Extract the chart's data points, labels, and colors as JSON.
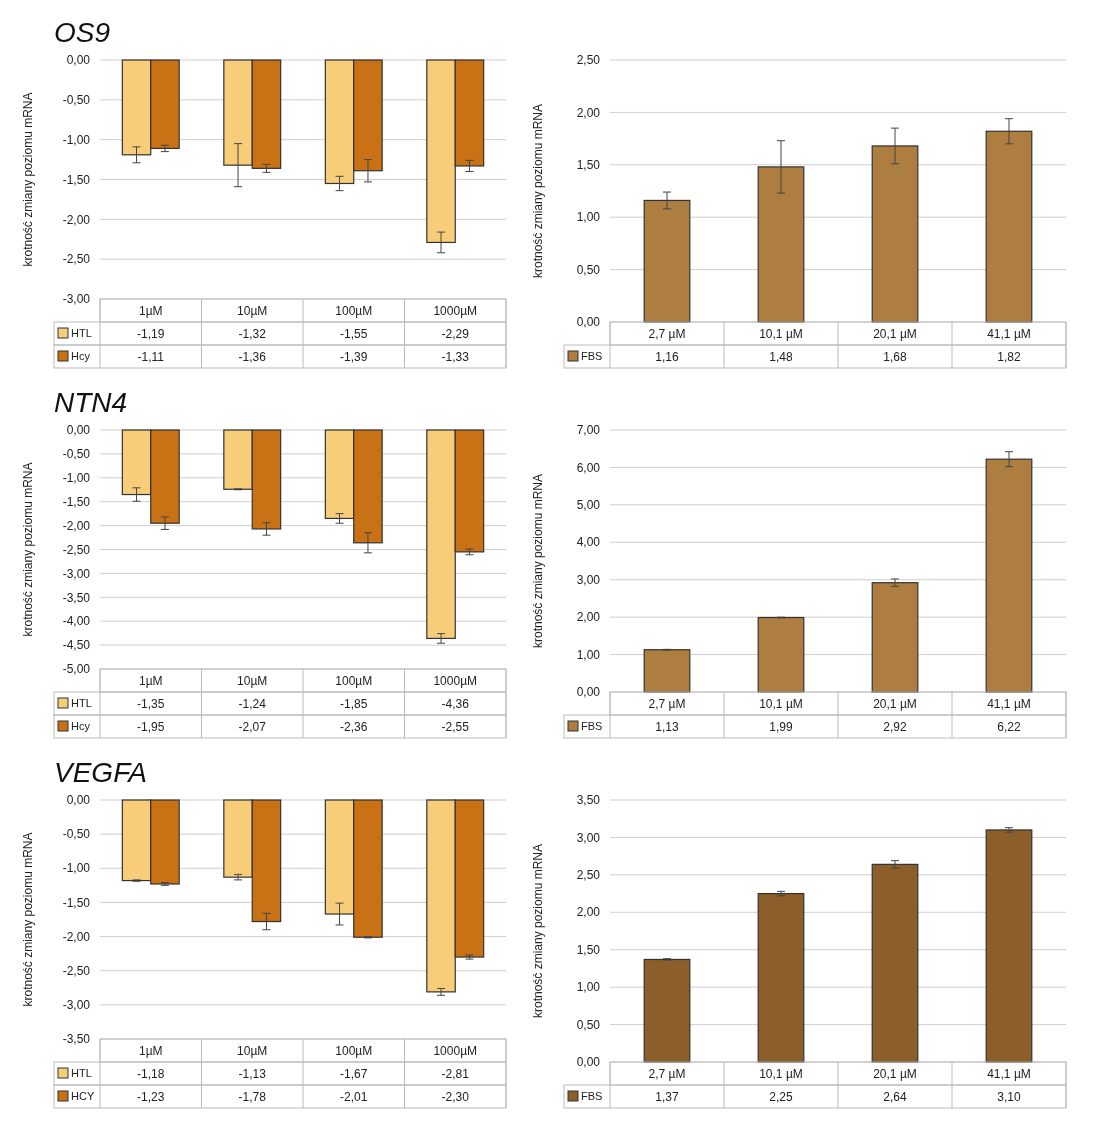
{
  "chart_data": [
    {
      "type": "bar",
      "title": "OS9",
      "ylabel": "krotność zmiany poziomu mRNA",
      "categories": [
        "1µM",
        "10µM",
        "100µM",
        "1000µM"
      ],
      "series": [
        {
          "name": "HTL",
          "color": "#f7cd7a",
          "values": [
            -1.19,
            -1.32,
            -1.55,
            -2.29
          ],
          "errors": [
            0.1,
            0.27,
            0.09,
            0.13
          ],
          "value_labels": [
            "-1,19",
            "-1,32",
            "-1,55",
            "-2,29"
          ]
        },
        {
          "name": "Hcy",
          "color": "#c87215",
          "values": [
            -1.11,
            -1.36,
            -1.39,
            -1.33
          ],
          "errors": [
            0.04,
            0.05,
            0.14,
            0.07
          ],
          "value_labels": [
            "-1,11",
            "-1,36",
            "-1,39",
            "-1,33"
          ]
        }
      ],
      "ylim": [
        -3,
        0
      ],
      "yticks": [
        {
          "value": -3,
          "label": "-3,00"
        },
        {
          "value": -2.5,
          "label": "-2,50"
        },
        {
          "value": -2,
          "label": "-2,00"
        },
        {
          "value": -1.5,
          "label": "-1,50"
        },
        {
          "value": -1,
          "label": "-1,00"
        },
        {
          "value": -0.5,
          "label": "-0,50"
        },
        {
          "value": 0,
          "label": "0,00"
        }
      ],
      "grid": "y",
      "legend": "bottom"
    },
    {
      "type": "bar",
      "ylabel": "krotność zmiany poziomu mRNA",
      "categories": [
        "2,7 µM",
        "10,1 µM",
        "20,1 µM",
        "41,1 µM"
      ],
      "series": [
        {
          "name": "FBS",
          "color": "#ae7d40",
          "values": [
            1.16,
            1.48,
            1.68,
            1.82
          ],
          "errors": [
            0.08,
            0.25,
            0.17,
            0.12
          ],
          "value_labels": [
            "1,16",
            "1,48",
            "1,68",
            "1,82"
          ]
        }
      ],
      "ylim": [
        0,
        2.5
      ],
      "yticks": [
        {
          "value": 0,
          "label": "0,00"
        },
        {
          "value": 0.5,
          "label": "0,50"
        },
        {
          "value": 1,
          "label": "1,00"
        },
        {
          "value": 1.5,
          "label": "1,50"
        },
        {
          "value": 2,
          "label": "2,00"
        },
        {
          "value": 2.5,
          "label": "2,50"
        }
      ],
      "grid": "y",
      "legend": "bottom"
    },
    {
      "type": "bar",
      "title": "NTN4",
      "ylabel": "krotność zmiany poziomu mRNA",
      "categories": [
        "1µM",
        "10µM",
        "100µM",
        "1000µM"
      ],
      "series": [
        {
          "name": "HTL",
          "color": "#f7cd7a",
          "values": [
            -1.35,
            -1.24,
            -1.85,
            -4.36
          ],
          "errors": [
            0.14,
            0.01,
            0.1,
            0.1
          ],
          "value_labels": [
            "-1,35",
            "-1,24",
            "-1,85",
            "-4,36"
          ]
        },
        {
          "name": "Hcy",
          "color": "#c87215",
          "values": [
            -1.95,
            -2.07,
            -2.36,
            -2.55
          ],
          "errors": [
            0.13,
            0.13,
            0.21,
            0.06
          ],
          "value_labels": [
            "-1,95",
            "-2,07",
            "-2,36",
            "-2,55"
          ]
        }
      ],
      "ylim": [
        -5,
        0
      ],
      "yticks": [
        {
          "value": -5,
          "label": "-5,00"
        },
        {
          "value": -4.5,
          "label": "-4,50"
        },
        {
          "value": -4,
          "label": "-4,00"
        },
        {
          "value": -3.5,
          "label": "-3,50"
        },
        {
          "value": -3,
          "label": "-3,00"
        },
        {
          "value": -2.5,
          "label": "-2,50"
        },
        {
          "value": -2,
          "label": "-2,00"
        },
        {
          "value": -1.5,
          "label": "-1,50"
        },
        {
          "value": -1,
          "label": "-1,00"
        },
        {
          "value": -0.5,
          "label": "-0,50"
        },
        {
          "value": 0,
          "label": "0,00"
        }
      ],
      "grid": "y",
      "legend": "bottom"
    },
    {
      "type": "bar",
      "ylabel": "krotność zmiany poziomu mRNA",
      "categories": [
        "2,7 µM",
        "10,1 µM",
        "20,1 µM",
        "41,1 µM"
      ],
      "series": [
        {
          "name": "FBS",
          "color": "#ae7d40",
          "values": [
            1.13,
            1.99,
            2.92,
            6.22
          ],
          "errors": [
            0.01,
            0.01,
            0.1,
            0.2
          ],
          "value_labels": [
            "1,13",
            "1,99",
            "2,92",
            "6,22"
          ]
        }
      ],
      "ylim": [
        0,
        7
      ],
      "yticks": [
        {
          "value": 0,
          "label": "0,00"
        },
        {
          "value": 1,
          "label": "1,00"
        },
        {
          "value": 2,
          "label": "2,00"
        },
        {
          "value": 3,
          "label": "3,00"
        },
        {
          "value": 4,
          "label": "4,00"
        },
        {
          "value": 5,
          "label": "5,00"
        },
        {
          "value": 6,
          "label": "6,00"
        },
        {
          "value": 7,
          "label": "7,00"
        }
      ],
      "grid": "y",
      "legend": "bottom"
    },
    {
      "type": "bar",
      "title": "VEGFA",
      "ylabel": "krotność zmiany poziomu mRNA",
      "categories": [
        "1µM",
        "10µM",
        "100µM",
        "1000µM"
      ],
      "series": [
        {
          "name": "HTL",
          "color": "#f7cd7a",
          "values": [
            -1.18,
            -1.13,
            -1.67,
            -2.81
          ],
          "errors": [
            0.01,
            0.04,
            0.16,
            0.05
          ],
          "value_labels": [
            "-1,18",
            "-1,13",
            "-1,67",
            "-2,81"
          ]
        },
        {
          "name": "HCY",
          "color": "#c87215",
          "values": [
            -1.23,
            -1.78,
            -2.01,
            -2.3
          ],
          "errors": [
            0.02,
            0.12,
            0.01,
            0.03
          ],
          "value_labels": [
            "-1,23",
            "-1,78",
            "-2,01",
            "-2,30"
          ]
        }
      ],
      "ylim": [
        -3.5,
        0
      ],
      "yticks": [
        {
          "value": -3.5,
          "label": "-3,50"
        },
        {
          "value": -3,
          "label": "-3,00"
        },
        {
          "value": -2.5,
          "label": "-2,50"
        },
        {
          "value": -2,
          "label": "-2,00"
        },
        {
          "value": -1.5,
          "label": "-1,50"
        },
        {
          "value": -1,
          "label": "-1,00"
        },
        {
          "value": -0.5,
          "label": "-0,50"
        },
        {
          "value": 0,
          "label": "0,00"
        }
      ],
      "grid": "y",
      "legend": "bottom"
    },
    {
      "type": "bar",
      "ylabel": "krotność zmiany poziomu mRNA",
      "categories": [
        "2,7 µM",
        "10,1 µM",
        "20,1 µM",
        "41,1 µM"
      ],
      "series": [
        {
          "name": "FBS",
          "color": "#8b5e2a",
          "values": [
            1.37,
            2.25,
            2.64,
            3.1
          ],
          "errors": [
            0.01,
            0.03,
            0.05,
            0.03
          ],
          "value_labels": [
            "1,37",
            "2,25",
            "2,64",
            "3,10"
          ]
        }
      ],
      "ylim": [
        0,
        3.5
      ],
      "yticks": [
        {
          "value": 0,
          "label": "0,00"
        },
        {
          "value": 0.5,
          "label": "0,50"
        },
        {
          "value": 1,
          "label": "1,00"
        },
        {
          "value": 1.5,
          "label": "1,50"
        },
        {
          "value": 2,
          "label": "2,00"
        },
        {
          "value": 2.5,
          "label": "2,50"
        },
        {
          "value": 3,
          "label": "3,00"
        },
        {
          "value": 3.5,
          "label": "3,50"
        }
      ],
      "grid": "y",
      "legend": "bottom"
    }
  ]
}
